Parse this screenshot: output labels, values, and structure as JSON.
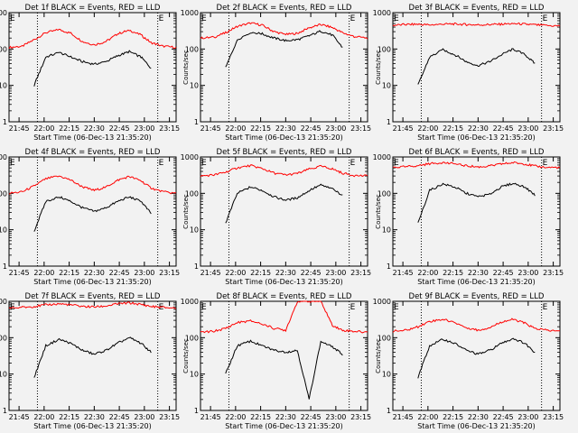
{
  "figure": {
    "start_time_label": "Start Time (06-Dec-13 21:35:20)",
    "ylabel": "Counts/sec",
    "x_tick_labels": [
      "21:45",
      "22:00",
      "22:15",
      "22:30",
      "22:45",
      "23:00",
      "23:15"
    ],
    "y_tick_labels": [
      "1",
      "10",
      "100",
      "1000"
    ],
    "edge_marker": "E",
    "colors": {
      "events": "#000000",
      "lld": "#ff0000",
      "background": "#f2f2f2"
    }
  },
  "chart_data": [
    {
      "type": "line",
      "title": "Det 1f BLACK = Events, RED = LLD",
      "xlabel": "Start Time (06-Dec-13 21:35:20)",
      "ylabel": "Counts/sec",
      "xlim": [
        0,
        100
      ],
      "ylim": [
        1,
        1000
      ],
      "yscale": "log",
      "grid": false,
      "x": [
        0,
        8,
        15,
        22,
        30,
        37,
        44,
        51,
        58,
        65,
        72,
        79,
        85,
        92,
        100
      ],
      "series": [
        {
          "name": "LLD",
          "values": [
            110,
            120,
            180,
            280,
            340,
            270,
            160,
            130,
            160,
            260,
            330,
            240,
            150,
            120,
            110
          ]
        },
        {
          "name": "Events",
          "values": [
            null,
            null,
            10,
            60,
            80,
            60,
            45,
            38,
            45,
            65,
            85,
            60,
            30,
            null,
            null
          ]
        }
      ],
      "vlines": [
        17,
        89
      ]
    },
    {
      "type": "line",
      "title": "Det 2f BLACK = Events, RED = LLD",
      "xlabel": "Start Time (06-Dec-13 21:35:20)",
      "ylabel": "Counts/sec",
      "xlim": [
        0,
        100
      ],
      "ylim": [
        1,
        1000
      ],
      "yscale": "log",
      "grid": false,
      "x": [
        0,
        8,
        15,
        22,
        30,
        37,
        44,
        51,
        58,
        65,
        72,
        79,
        85,
        92,
        100
      ],
      "series": [
        {
          "name": "LLD",
          "values": [
            200,
            210,
            280,
            420,
            520,
            450,
            300,
            250,
            270,
            380,
            470,
            390,
            280,
            220,
            200
          ]
        },
        {
          "name": "Events",
          "values": [
            null,
            null,
            30,
            180,
            290,
            260,
            200,
            170,
            180,
            230,
            310,
            240,
            110,
            null,
            null
          ]
        }
      ],
      "vlines": [
        17,
        89
      ]
    },
    {
      "type": "line",
      "title": "Det 3f BLACK = Events, RED = LLD",
      "xlabel": "Start Time (06-Dec-13 21:35:20)",
      "ylabel": "Counts/sec",
      "xlim": [
        0,
        100
      ],
      "ylim": [
        1,
        1000
      ],
      "yscale": "log",
      "grid": false,
      "x": [
        0,
        8,
        15,
        22,
        30,
        37,
        44,
        51,
        58,
        65,
        72,
        79,
        85,
        92,
        100
      ],
      "series": [
        {
          "name": "LLD",
          "values": [
            450,
            470,
            480,
            460,
            480,
            490,
            470,
            460,
            470,
            480,
            500,
            480,
            460,
            440,
            430
          ]
        },
        {
          "name": "Events",
          "values": [
            null,
            null,
            10,
            60,
            95,
            70,
            45,
            35,
            45,
            70,
            100,
            70,
            40,
            null,
            null
          ]
        }
      ],
      "vlines": [
        17,
        89
      ]
    },
    {
      "type": "line",
      "title": "Det 4f BLACK = Events, RED = LLD",
      "xlabel": "Start Time (06-Dec-13 21:35:20)",
      "ylabel": "Counts/sec",
      "xlim": [
        0,
        100
      ],
      "ylim": [
        1,
        1000
      ],
      "yscale": "log",
      "grid": false,
      "x": [
        0,
        8,
        15,
        22,
        30,
        37,
        44,
        51,
        58,
        65,
        72,
        79,
        85,
        92,
        100
      ],
      "series": [
        {
          "name": "LLD",
          "values": [
            100,
            110,
            160,
            250,
            300,
            230,
            150,
            120,
            150,
            230,
            290,
            220,
            140,
            110,
            100
          ]
        },
        {
          "name": "Events",
          "values": [
            null,
            null,
            9,
            60,
            80,
            60,
            40,
            32,
            40,
            60,
            80,
            60,
            28,
            null,
            null
          ]
        }
      ],
      "vlines": [
        17,
        89
      ]
    },
    {
      "type": "line",
      "title": "Det 5f BLACK = Events, RED = LLD",
      "xlabel": "Start Time (06-Dec-13 21:35:20)",
      "ylabel": "Counts/sec",
      "xlim": [
        0,
        100
      ],
      "ylim": [
        1,
        1000
      ],
      "yscale": "log",
      "grid": false,
      "x": [
        0,
        8,
        15,
        22,
        30,
        37,
        44,
        51,
        58,
        65,
        72,
        79,
        85,
        92,
        100
      ],
      "series": [
        {
          "name": "LLD",
          "values": [
            300,
            320,
            380,
            500,
            580,
            480,
            360,
            320,
            350,
            460,
            550,
            470,
            360,
            310,
            300
          ]
        },
        {
          "name": "Events",
          "values": [
            null,
            null,
            15,
            100,
            150,
            120,
            80,
            65,
            75,
            120,
            170,
            130,
            90,
            null,
            null
          ]
        }
      ],
      "vlines": [
        17,
        89
      ]
    },
    {
      "type": "line",
      "title": "Det 6f BLACK = Events, RED = LLD",
      "xlabel": "Start Time (06-Dec-13 21:35:20)",
      "ylabel": "Counts/sec",
      "xlim": [
        0,
        100
      ],
      "ylim": [
        1,
        1000
      ],
      "yscale": "log",
      "grid": false,
      "x": [
        0,
        8,
        15,
        22,
        30,
        37,
        44,
        51,
        58,
        65,
        72,
        79,
        85,
        92,
        100
      ],
      "series": [
        {
          "name": "LLD",
          "values": [
            520,
            540,
            580,
            650,
            700,
            640,
            570,
            530,
            560,
            640,
            700,
            640,
            560,
            520,
            510
          ]
        },
        {
          "name": "Events",
          "values": [
            null,
            null,
            15,
            120,
            180,
            150,
            100,
            80,
            95,
            150,
            190,
            150,
            90,
            null,
            null
          ]
        }
      ],
      "vlines": [
        17,
        89
      ]
    },
    {
      "type": "line",
      "title": "Det 7f BLACK = Events, RED = LLD",
      "xlabel": "Start Time (06-Dec-13 21:35:20)",
      "ylabel": "Counts/sec",
      "xlim": [
        0,
        100
      ],
      "ylim": [
        1,
        1000
      ],
      "yscale": "log",
      "grid": false,
      "x": [
        0,
        8,
        15,
        22,
        30,
        37,
        44,
        51,
        58,
        65,
        72,
        79,
        85,
        92,
        100
      ],
      "series": [
        {
          "name": "LLD",
          "values": [
            650,
            680,
            720,
            800,
            850,
            800,
            720,
            700,
            740,
            850,
            900,
            820,
            720,
            680,
            650
          ]
        },
        {
          "name": "Events",
          "values": [
            null,
            null,
            8,
            60,
            90,
            70,
            45,
            35,
            45,
            70,
            100,
            70,
            40,
            null,
            null
          ]
        }
      ],
      "vlines": [
        17,
        89
      ]
    },
    {
      "type": "line",
      "title": "Det 8f BLACK = Events, RED = LLD",
      "xlabel": "Start Time (06-Dec-13 21:35:20)",
      "ylabel": "Counts/sec",
      "xlim": [
        0,
        100
      ],
      "ylim": [
        1,
        1000
      ],
      "yscale": "log",
      "grid": false,
      "x": [
        0,
        8,
        15,
        22,
        30,
        37,
        44,
        51,
        58,
        65,
        72,
        79,
        85,
        92,
        100
      ],
      "series": [
        {
          "name": "LLD",
          "values": [
            140,
            150,
            180,
            260,
            290,
            240,
            180,
            160,
            1000,
            1000,
            1000,
            220,
            160,
            150,
            140
          ]
        },
        {
          "name": "Events",
          "values": [
            null,
            null,
            10,
            60,
            80,
            60,
            45,
            40,
            45,
            2,
            80,
            55,
            35,
            null,
            null
          ]
        }
      ],
      "vlines": [
        17,
        89
      ]
    },
    {
      "type": "line",
      "title": "Det 9f BLACK = Events, RED = LLD",
      "xlabel": "Start Time (06-Dec-13 21:35:20)",
      "ylabel": "Counts/sec",
      "xlim": [
        0,
        100
      ],
      "ylim": [
        1,
        1000
      ],
      "yscale": "log",
      "grid": false,
      "x": [
        0,
        8,
        15,
        22,
        30,
        37,
        44,
        51,
        58,
        65,
        72,
        79,
        85,
        92,
        100
      ],
      "series": [
        {
          "name": "LLD",
          "values": [
            150,
            160,
            200,
            280,
            320,
            260,
            190,
            160,
            190,
            270,
            320,
            250,
            180,
            160,
            150
          ]
        },
        {
          "name": "Events",
          "values": [
            null,
            null,
            8,
            60,
            90,
            70,
            45,
            35,
            45,
            70,
            95,
            70,
            40,
            null,
            null
          ]
        }
      ],
      "vlines": [
        17,
        89
      ]
    }
  ]
}
